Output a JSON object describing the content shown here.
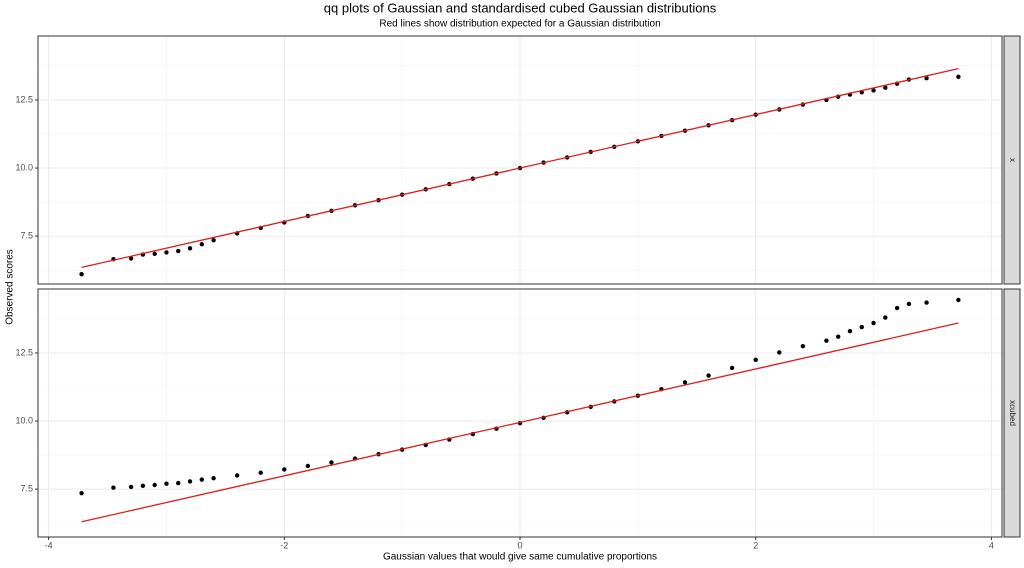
{
  "title": "qq plots of Gaussian and standardised cubed Gaussian distributions",
  "subtitle": "Red lines show distribution expected for a Gaussian distribution",
  "x_label": "Gaussian values that would give same cumulative proportions",
  "y_label": "Observed scores",
  "chart_data": [
    {
      "type": "scatter",
      "strip": "x",
      "color": "#000000",
      "x": [
        -3.72,
        -3.45,
        -3.3,
        -3.2,
        -3.1,
        -3.0,
        -2.9,
        -2.8,
        -2.7,
        -2.6,
        -2.4,
        -2.2,
        -2.0,
        -1.8,
        -1.6,
        -1.4,
        -1.2,
        -1.0,
        -0.8,
        -0.6,
        -0.4,
        -0.2,
        0,
        0.2,
        0.4,
        0.6,
        0.8,
        1.0,
        1.2,
        1.4,
        1.6,
        1.8,
        2.0,
        2.2,
        2.4,
        2.6,
        2.7,
        2.8,
        2.9,
        3.0,
        3.1,
        3.2,
        3.3,
        3.45,
        3.72
      ],
      "values": [
        6.1,
        6.65,
        6.68,
        6.82,
        6.85,
        6.9,
        6.95,
        7.05,
        7.2,
        7.35,
        7.6,
        7.8,
        8.0,
        8.24,
        8.43,
        8.63,
        8.82,
        9.02,
        9.22,
        9.41,
        9.61,
        9.8,
        10.0,
        10.2,
        10.39,
        10.59,
        10.78,
        10.98,
        11.18,
        11.37,
        11.57,
        11.76,
        11.96,
        12.15,
        12.33,
        12.5,
        12.62,
        12.7,
        12.78,
        12.85,
        12.95,
        13.1,
        13.25,
        13.3,
        13.35
      ],
      "reference_line": {
        "x": [
          -3.72,
          3.72
        ],
        "y": [
          6.35,
          13.65
        ],
        "color": "#e41a1c"
      },
      "xlim": [
        -4.09,
        4.09
      ],
      "xticks": [
        -4,
        -2,
        0,
        2,
        4
      ],
      "minor_xticks": [
        -3,
        -1,
        1,
        3
      ],
      "ylim": [
        5.74,
        14.85
      ],
      "yticks": [
        7.5,
        {
          "value": 10,
          "label": "10.0"
        },
        12.5
      ],
      "minor_yticks": [
        6.25,
        8.75,
        11.25,
        13.75
      ],
      "grid": true,
      "show_xtick_labels": false
    },
    {
      "type": "scatter",
      "strip": "xcubed",
      "color": "#000000",
      "x": [
        -3.72,
        -3.45,
        -3.3,
        -3.2,
        -3.1,
        -3.0,
        -2.9,
        -2.8,
        -2.7,
        -2.6,
        -2.4,
        -2.2,
        -2.0,
        -1.8,
        -1.6,
        -1.4,
        -1.2,
        -1.0,
        -0.8,
        -0.6,
        -0.4,
        -0.2,
        0,
        0.2,
        0.4,
        0.6,
        0.8,
        1.0,
        1.2,
        1.4,
        1.6,
        1.8,
        2.0,
        2.2,
        2.4,
        2.6,
        2.7,
        2.8,
        2.9,
        3.0,
        3.1,
        3.2,
        3.3,
        3.45,
        3.72
      ],
      "values": [
        7.35,
        7.55,
        7.58,
        7.62,
        7.65,
        7.7,
        7.72,
        7.78,
        7.85,
        7.9,
        8.0,
        8.1,
        8.22,
        8.35,
        8.48,
        8.62,
        8.78,
        8.95,
        9.12,
        9.32,
        9.52,
        9.72,
        9.92,
        10.12,
        10.32,
        10.52,
        10.72,
        10.93,
        11.17,
        11.42,
        11.67,
        11.95,
        12.25,
        12.52,
        12.75,
        12.95,
        13.1,
        13.3,
        13.45,
        13.6,
        13.8,
        14.15,
        14.3,
        14.35,
        14.45
      ],
      "reference_line": {
        "x": [
          -3.72,
          3.72
        ],
        "y": [
          6.3,
          13.6
        ],
        "color": "#e41a1c"
      },
      "xlim": [
        -4.09,
        4.09
      ],
      "xticks": [
        -4,
        -2,
        0,
        2,
        4
      ],
      "minor_xticks": [
        -3,
        -1,
        1,
        3
      ],
      "ylim": [
        5.74,
        14.85
      ],
      "yticks": [
        7.5,
        {
          "value": 10,
          "label": "10.0"
        },
        12.5
      ],
      "minor_yticks": [
        6.25,
        8.75,
        11.25,
        13.75
      ],
      "grid": true,
      "show_xtick_labels": true
    }
  ]
}
